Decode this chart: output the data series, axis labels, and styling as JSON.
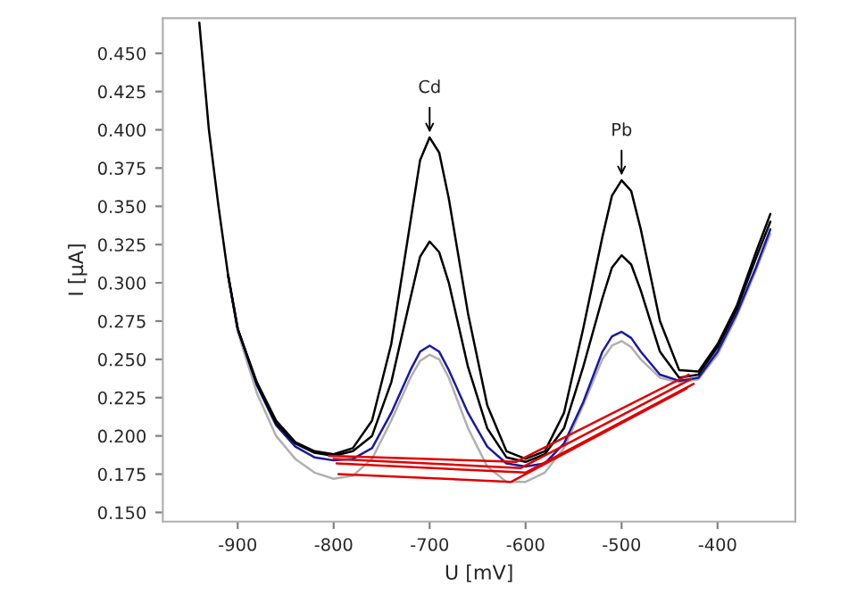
{
  "chart_data": {
    "type": "line",
    "xlabel": "U [mV]",
    "ylabel": "I [µA]",
    "xlim": [
      -978,
      -319
    ],
    "ylim": [
      0.144,
      0.473
    ],
    "xticks": [
      -900,
      -800,
      -700,
      -600,
      -500,
      -400
    ],
    "yticks": [
      {
        "value": 0.15,
        "label": "0.150"
      },
      {
        "value": 0.175,
        "label": "0.175"
      },
      {
        "value": 0.2,
        "label": "0.200"
      },
      {
        "value": 0.225,
        "label": "0.225"
      },
      {
        "value": 0.25,
        "label": "0.250"
      },
      {
        "value": 0.275,
        "label": "0.275"
      },
      {
        "value": 0.3,
        "label": "0.300"
      },
      {
        "value": 0.325,
        "label": "0.325"
      },
      {
        "value": 0.35,
        "label": "0.350"
      },
      {
        "value": 0.375,
        "label": "0.375"
      },
      {
        "value": 0.4,
        "label": "0.400"
      },
      {
        "value": 0.425,
        "label": "0.425"
      },
      {
        "value": 0.45,
        "label": "0.450"
      }
    ],
    "grid": false,
    "annotations": [
      {
        "text": "Cd",
        "x": -700,
        "y": 0.395
      },
      {
        "text": "Pb",
        "x": -500,
        "y": 0.367
      }
    ],
    "series": [
      {
        "color": "#b0b0b0",
        "x": [
          -910,
          -900,
          -880,
          -860,
          -840,
          -820,
          -800,
          -780,
          -760,
          -740,
          -720,
          -710,
          -700,
          -690,
          -680,
          -660,
          -640,
          -620,
          -600,
          -580,
          -560,
          -540,
          -520,
          -510,
          -500,
          -490,
          -480,
          -460,
          -440,
          -420,
          -400,
          -380,
          -360,
          -345
        ],
        "values": [
          0.305,
          0.268,
          0.228,
          0.2,
          0.185,
          0.176,
          0.172,
          0.174,
          0.185,
          0.21,
          0.238,
          0.249,
          0.253,
          0.25,
          0.238,
          0.205,
          0.18,
          0.17,
          0.17,
          0.176,
          0.192,
          0.22,
          0.25,
          0.259,
          0.262,
          0.258,
          0.25,
          0.238,
          0.235,
          0.237,
          0.253,
          0.278,
          0.308,
          0.332
        ]
      },
      {
        "color": "#1a1aa0",
        "x": [
          -910,
          -900,
          -880,
          -860,
          -840,
          -820,
          -800,
          -780,
          -760,
          -740,
          -720,
          -710,
          -700,
          -690,
          -680,
          -660,
          -640,
          -620,
          -600,
          -580,
          -560,
          -540,
          -520,
          -510,
          -500,
          -490,
          -480,
          -460,
          -440,
          -420,
          -400,
          -380,
          -360,
          -345
        ],
        "values": [
          0.305,
          0.27,
          0.233,
          0.207,
          0.193,
          0.186,
          0.184,
          0.185,
          0.192,
          0.215,
          0.243,
          0.255,
          0.259,
          0.255,
          0.243,
          0.215,
          0.193,
          0.182,
          0.18,
          0.182,
          0.195,
          0.222,
          0.255,
          0.265,
          0.268,
          0.264,
          0.255,
          0.24,
          0.236,
          0.238,
          0.255,
          0.28,
          0.31,
          0.335
        ]
      },
      {
        "color": "#000000",
        "x": [
          -910,
          -900,
          -880,
          -860,
          -840,
          -820,
          -800,
          -780,
          -760,
          -740,
          -720,
          -710,
          -700,
          -690,
          -680,
          -660,
          -640,
          -620,
          -600,
          -580,
          -560,
          -540,
          -520,
          -510,
          -500,
          -490,
          -480,
          -460,
          -440,
          -420,
          -400,
          -380,
          -360,
          -345
        ],
        "values": [
          0.305,
          0.27,
          0.234,
          0.208,
          0.195,
          0.189,
          0.187,
          0.19,
          0.2,
          0.235,
          0.29,
          0.317,
          0.327,
          0.32,
          0.3,
          0.245,
          0.205,
          0.186,
          0.183,
          0.188,
          0.205,
          0.245,
          0.29,
          0.31,
          0.318,
          0.312,
          0.295,
          0.255,
          0.238,
          0.24,
          0.258,
          0.283,
          0.316,
          0.34
        ]
      },
      {
        "color": "#000000",
        "x": [
          -940,
          -930,
          -920,
          -910,
          -900,
          -880,
          -860,
          -840,
          -820,
          -800,
          -780,
          -760,
          -740,
          -720,
          -710,
          -700,
          -690,
          -680,
          -660,
          -640,
          -620,
          -600,
          -580,
          -560,
          -540,
          -520,
          -510,
          -500,
          -490,
          -480,
          -460,
          -440,
          -420,
          -400,
          -380,
          -360,
          -345
        ],
        "values": [
          0.47,
          0.4,
          0.35,
          0.305,
          0.27,
          0.235,
          0.21,
          0.196,
          0.19,
          0.188,
          0.192,
          0.21,
          0.26,
          0.34,
          0.38,
          0.395,
          0.385,
          0.355,
          0.28,
          0.22,
          0.19,
          0.185,
          0.19,
          0.215,
          0.27,
          0.33,
          0.357,
          0.367,
          0.36,
          0.335,
          0.275,
          0.243,
          0.242,
          0.26,
          0.285,
          0.32,
          0.345
        ]
      },
      {
        "color": "#e00000",
        "x": [
          -805,
          -610,
          -430
        ],
        "values": [
          0.187,
          0.183,
          0.24
        ]
      },
      {
        "color": "#e00000",
        "x": [
          -800,
          -605,
          -428
        ],
        "values": [
          0.185,
          0.179,
          0.237
        ]
      },
      {
        "color": "#e00000",
        "x": [
          -797,
          -600,
          -425
        ],
        "values": [
          0.182,
          0.176,
          0.234
        ]
      },
      {
        "color": "#e00000",
        "x": [
          -795,
          -615,
          -432
        ],
        "values": [
          0.175,
          0.17,
          0.231
        ]
      }
    ]
  }
}
